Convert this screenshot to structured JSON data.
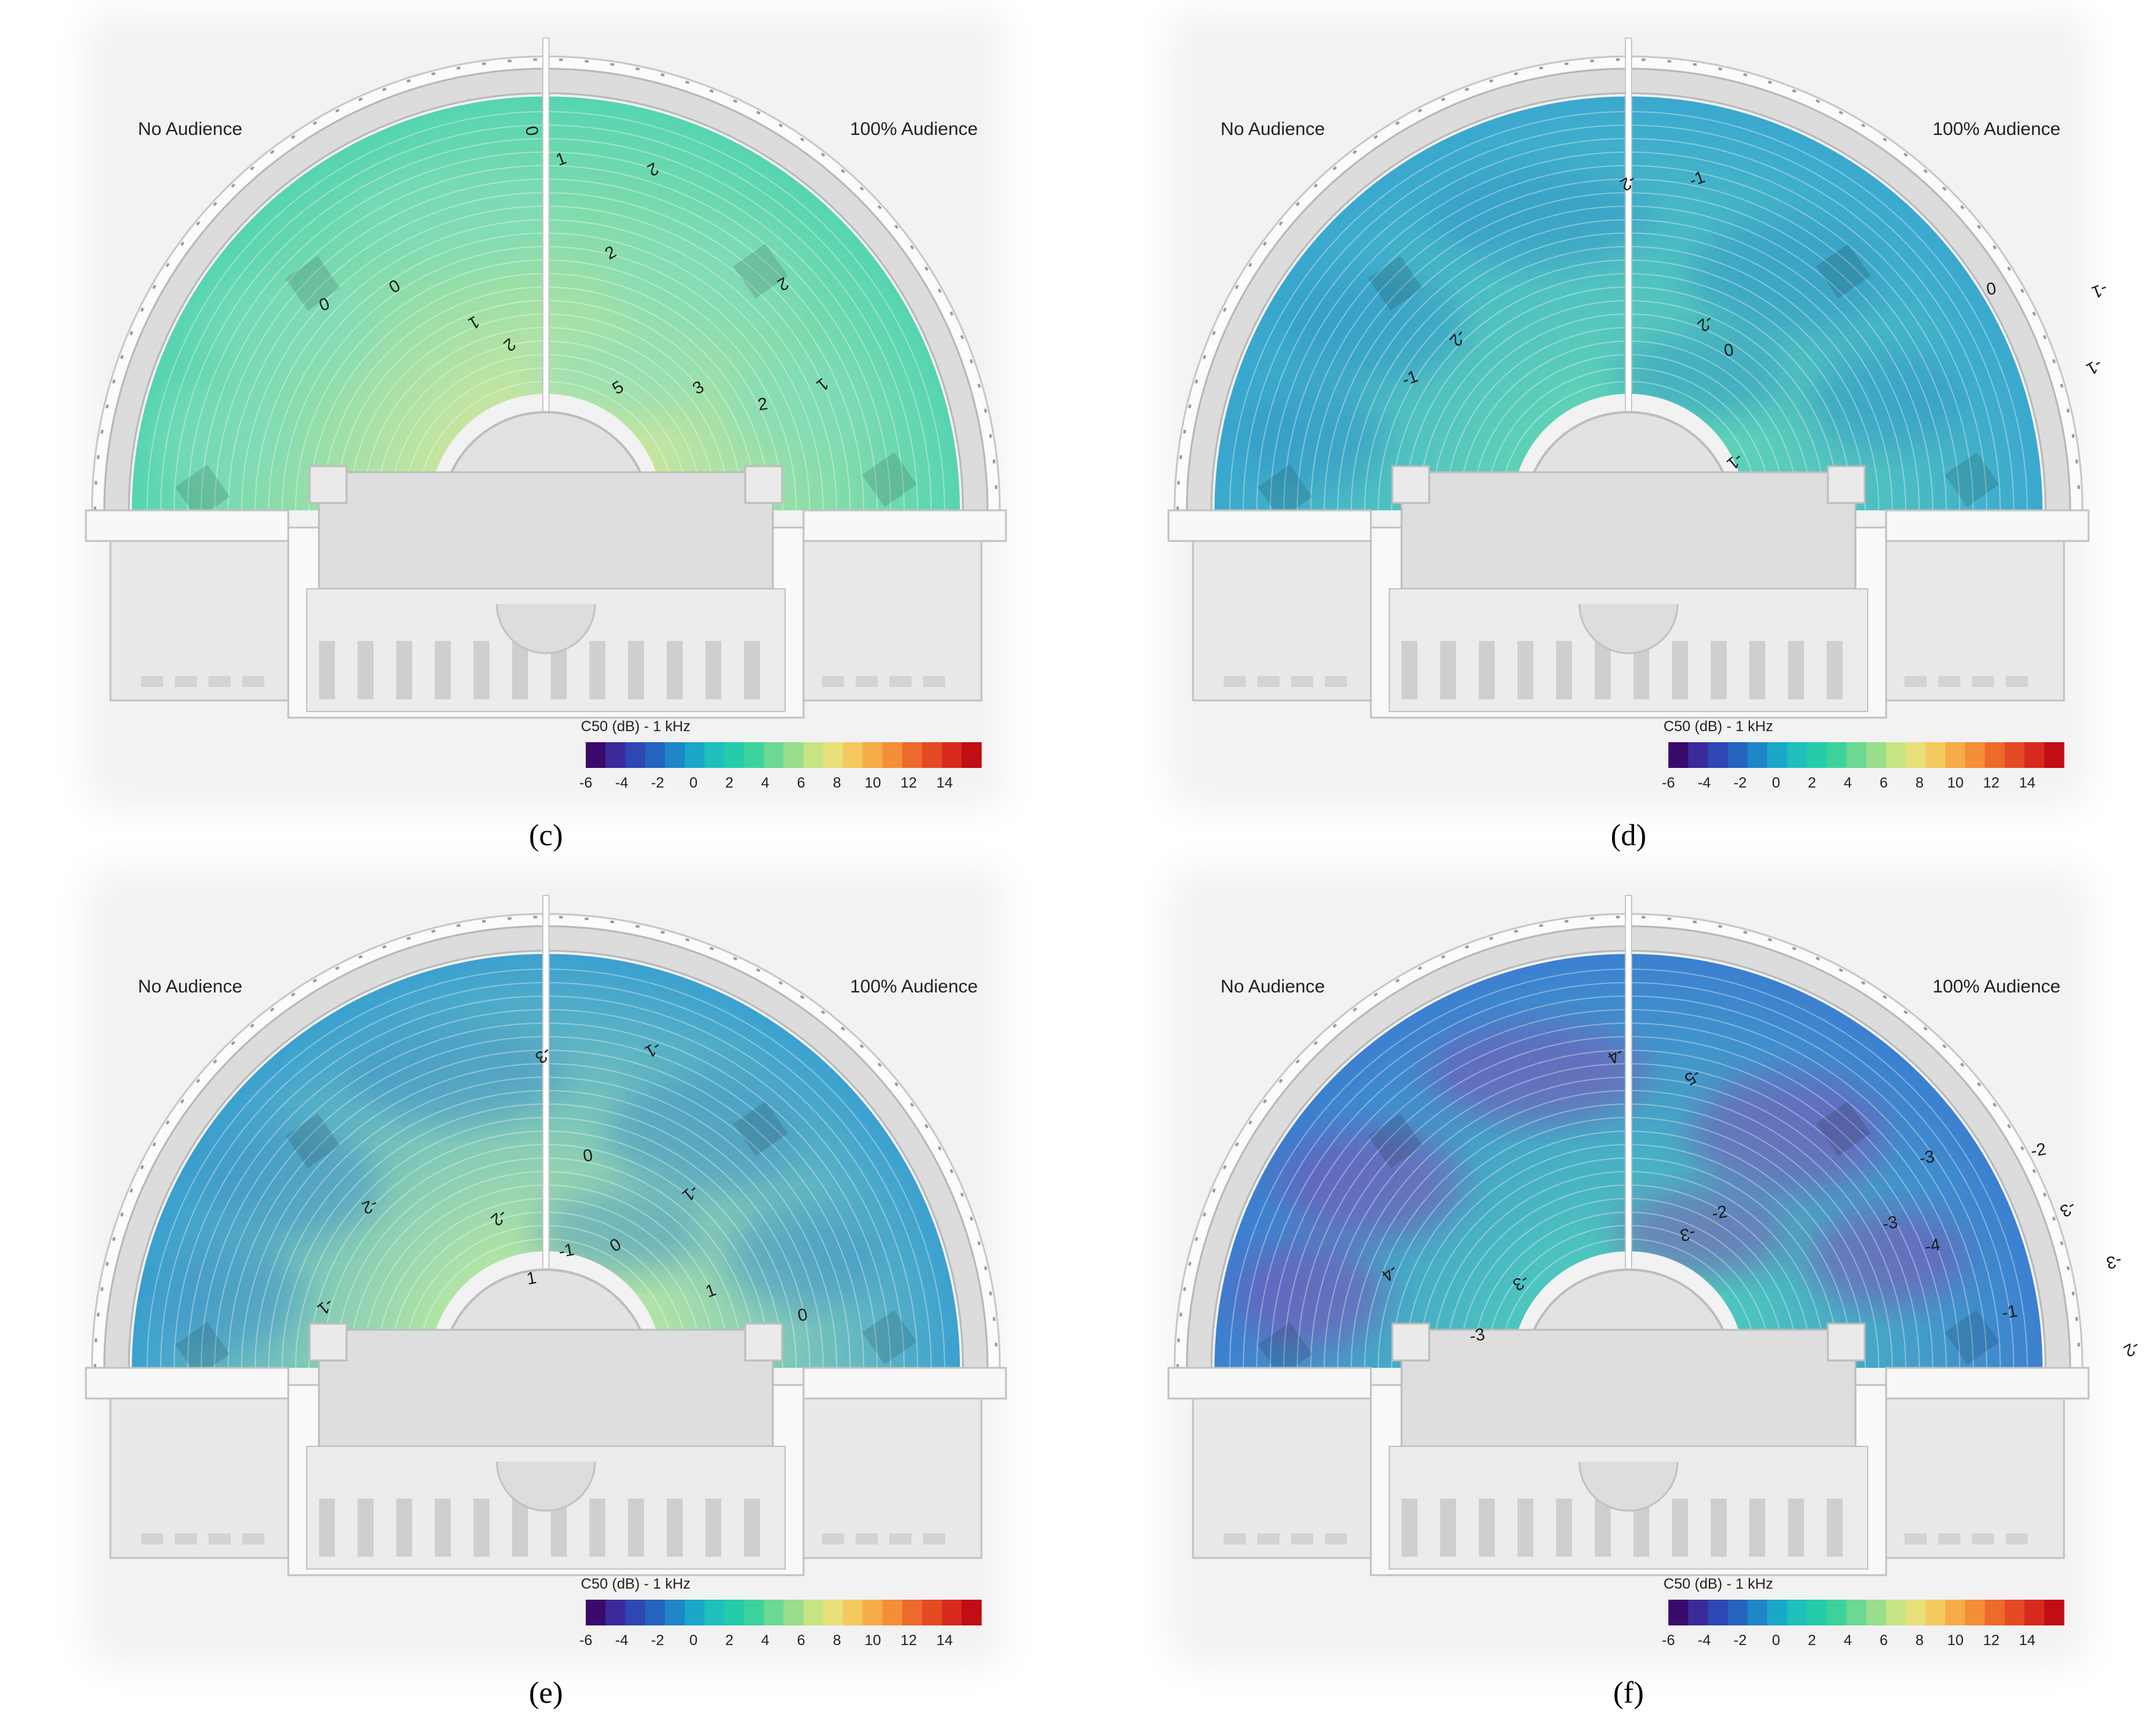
{
  "legend": {
    "title": "C50 (dB) - 1 kHz",
    "ticks": [
      "-6",
      "-4",
      "-2",
      "0",
      "2",
      "4",
      "6",
      "8",
      "10",
      "12",
      "14"
    ],
    "colors": [
      "#3a0a6b",
      "#3b2a9a",
      "#2f47b4",
      "#2564be",
      "#1e86c6",
      "#1aa7c8",
      "#1fbfbb",
      "#24ccaa",
      "#3dd29c",
      "#6bd894",
      "#98de8b",
      "#c6e483",
      "#e8e07a",
      "#f4c95f",
      "#f6ac48",
      "#f48e38",
      "#ee6a2c",
      "#e44a24",
      "#d62a1e",
      "#c00e14"
    ]
  },
  "panels": [
    {
      "caption": "(c)",
      "left_label": "No Audience",
      "right_label": "100% Audience",
      "fill": {
        "a": "#54d4b2",
        "b": "#c9e6a0"
      },
      "blotch": "#7fdcc0",
      "contour_labels": [
        "0",
        "1",
        "2",
        "2",
        "2",
        "0",
        "0",
        "1",
        "2",
        "5",
        "3",
        "2",
        "1"
      ]
    },
    {
      "caption": "(d)",
      "left_label": "No Audience",
      "right_label": "100% Audience",
      "fill": {
        "a": "#3aa8cf",
        "b": "#5fd3b6"
      },
      "blotch": "#2f8fc7",
      "contour_labels": [
        "-2",
        "-1",
        "-2",
        "0",
        "-1",
        "-2",
        "-1",
        "0",
        "-1",
        "-1"
      ]
    },
    {
      "caption": "(e)",
      "left_label": "No Audience",
      "right_label": "100% Audience",
      "fill": {
        "a": "#3aa0d0",
        "b": "#b6e7a4"
      },
      "blotch": "#3b8cc8",
      "contour_labels": [
        "-3",
        "-1",
        "0",
        "-1",
        "-2",
        "-2",
        "-1",
        "0",
        "1",
        "-1",
        "1",
        "0"
      ]
    },
    {
      "caption": "(f)",
      "left_label": "No Audience",
      "right_label": "100% Audience",
      "fill": {
        "a": "#3c7fd0",
        "b": "#4ec9be"
      },
      "blotch": "#8a3fae",
      "contour_labels": [
        "-5",
        "-4",
        "-3",
        "-2",
        "-4",
        "-3",
        "-3",
        "-4",
        "-3",
        "-2",
        "-3",
        "-3",
        "-1",
        "-3",
        "-2"
      ]
    }
  ]
}
